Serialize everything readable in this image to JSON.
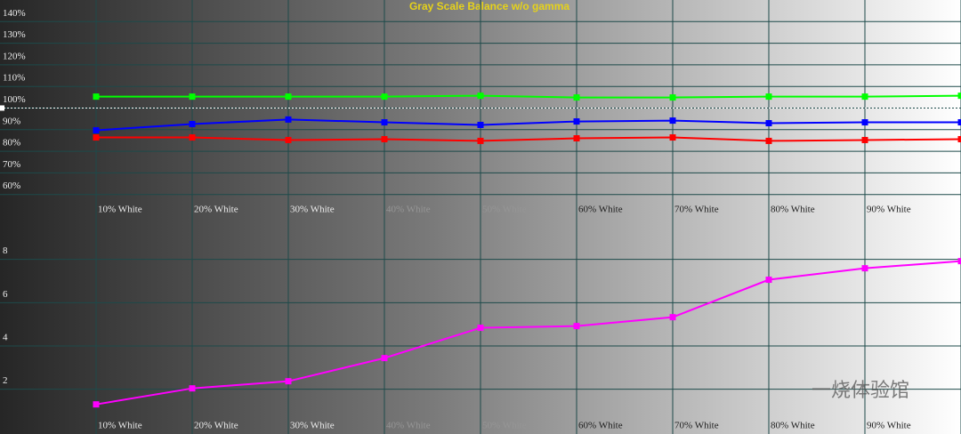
{
  "chart_data": [
    {
      "type": "line",
      "title": "Gray Scale Balance w/o gamma",
      "categories": [
        "10% White",
        "20% White",
        "30% White",
        "40% White",
        "50% White",
        "60% White",
        "70% White",
        "80% White",
        "90% White",
        null
      ],
      "ylim": [
        60,
        150
      ],
      "yticks": [
        {
          "value": 60,
          "label": "60%"
        },
        {
          "value": 70,
          "label": "70%"
        },
        {
          "value": 80,
          "label": "80%"
        },
        {
          "value": 90,
          "label": "90%"
        },
        {
          "value": 100,
          "label": "100%"
        },
        {
          "value": 110,
          "label": "110%"
        },
        {
          "value": 120,
          "label": "120%"
        },
        {
          "value": 130,
          "label": "130%"
        },
        {
          "value": 140,
          "label": "140%"
        }
      ],
      "reference": 100,
      "grid": true,
      "series": [
        {
          "color": "#00ff00",
          "values": [
            105.3,
            105.3,
            105.3,
            105.3,
            105.7,
            104.9,
            104.9,
            105.3,
            105.3,
            105.7
          ]
        },
        {
          "color": "#0000ff",
          "values": [
            89.7,
            92.6,
            94.7,
            93.4,
            92.2,
            93.8,
            94.2,
            93.0,
            93.4,
            93.4
          ]
        },
        {
          "color": "#ff0000",
          "values": [
            86.4,
            86.4,
            85.2,
            85.6,
            84.8,
            86.0,
            86.4,
            84.8,
            85.2,
            85.6
          ]
        }
      ]
    },
    {
      "type": "line",
      "categories": [
        "10% White",
        "20% White",
        "30% White",
        "40% White",
        "50% White",
        "60% White",
        "70% White",
        "80% White",
        "90% White",
        null
      ],
      "ylim": [
        1,
        10
      ],
      "yticks": [
        2,
        4,
        6,
        8
      ],
      "grid": true,
      "series": [
        {
          "color": "#ff00ff",
          "values": [
            1.3,
            2.04,
            2.37,
            3.44,
            4.84,
            4.92,
            5.33,
            7.06,
            7.59,
            7.92
          ]
        }
      ],
      "watermark": "一烧体验馆"
    }
  ]
}
